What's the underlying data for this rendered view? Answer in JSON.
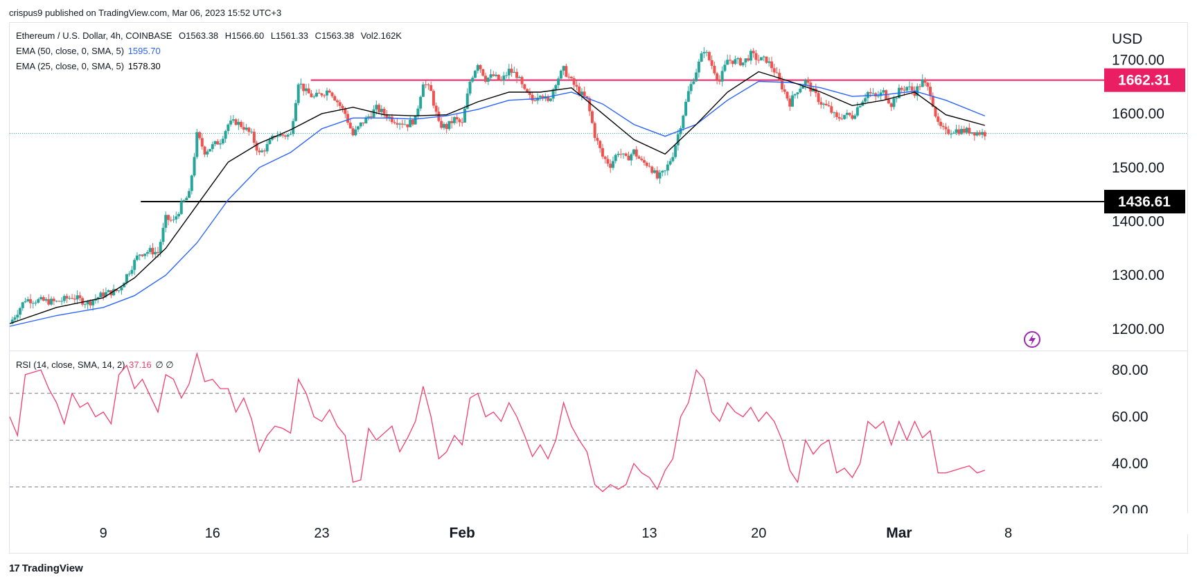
{
  "attribution": "crispus9 published on TradingView.com, Mar 06, 2023 15:52 UTC+3",
  "legend": {
    "symbol": "Ethereum / U.S. Dollar, 4h, COINBASE",
    "open_label": "O",
    "open": "1563.38",
    "high_label": "H",
    "high": "1566.60",
    "low_label": "L",
    "low": "1561.33",
    "close_label": "C",
    "close": "1563.38",
    "vol_label": "Vol",
    "vol": "2.162K",
    "ema50_label": "EMA (50, close, 0, SMA, 5)",
    "ema50_value": "1595.70",
    "ema25_label": "EMA (25, close, 0, SMA, 5)",
    "ema25_value": "1578.30",
    "rsi_label": "RSI (14, close, SMA, 14, 2)",
    "rsi_value": "37.16",
    "rsi_extra": "∅ ∅"
  },
  "footer": {
    "brand": "TradingView",
    "logo_icon": "tradingview-logo-icon"
  },
  "colors": {
    "up": "#26a69a",
    "down": "#ef5350",
    "ema50": "#2962ff",
    "ema25": "#000000",
    "resistance": "#e91e63",
    "support": "#000000",
    "rsi": "#f23d6d",
    "price_line": "#26a69a",
    "flash_icon": "#9c27b0"
  },
  "chart_data": [
    {
      "type": "candlestick",
      "title": "Ethereum / U.S. Dollar, 4h, COINBASE",
      "currency": "USD",
      "ylim": [
        1160,
        1770
      ],
      "y_ticks": [
        "1200.00",
        "1300.00",
        "1400.00",
        "1500.00",
        "1600.00",
        "1700.00"
      ],
      "x_ticks": [
        "9",
        "16",
        "23",
        "Feb",
        "13",
        "20",
        "Mar",
        "8"
      ],
      "x_tick_days": [
        9,
        16,
        23,
        32,
        44,
        51,
        60,
        67
      ],
      "x_range_days": [
        3.0,
        72.7
      ],
      "last_price": 1563.38,
      "horizontal_levels": [
        {
          "label": "1662.31",
          "value": 1662.31,
          "from_day": 22.3,
          "role": "resistance"
        },
        {
          "label": "1436.61",
          "value": 1436.61,
          "from_day": 11.4,
          "role": "support"
        }
      ],
      "close_path": [
        [
          3.0,
          1210
        ],
        [
          4.0,
          1255
        ],
        [
          6.0,
          1250
        ],
        [
          7.0,
          1260
        ],
        [
          8.0,
          1248
        ],
        [
          9.0,
          1265
        ],
        [
          10.0,
          1272
        ],
        [
          10.5,
          1300
        ],
        [
          11.3,
          1340
        ],
        [
          12.0,
          1345
        ],
        [
          12.5,
          1342
        ],
        [
          13.0,
          1405
        ],
        [
          13.5,
          1400
        ],
        [
          14.0,
          1430
        ],
        [
          14.5,
          1450
        ],
        [
          15.0,
          1560
        ],
        [
          15.5,
          1530
        ],
        [
          16.5,
          1550
        ],
        [
          17.0,
          1580
        ],
        [
          17.5,
          1585
        ],
        [
          18.0,
          1575
        ],
        [
          18.5,
          1560
        ],
        [
          19.0,
          1525
        ],
        [
          19.5,
          1540
        ],
        [
          20.0,
          1560
        ],
        [
          21.0,
          1560
        ],
        [
          21.5,
          1660
        ],
        [
          22.0,
          1640
        ],
        [
          22.5,
          1630
        ],
        [
          23.5,
          1645
        ],
        [
          24.5,
          1600
        ],
        [
          25.0,
          1560
        ],
        [
          25.5,
          1580
        ],
        [
          26.5,
          1610
        ],
        [
          27.5,
          1590
        ],
        [
          28.5,
          1580
        ],
        [
          29.0,
          1590
        ],
        [
          29.5,
          1660
        ],
        [
          30.0,
          1640
        ],
        [
          30.5,
          1580
        ],
        [
          31.0,
          1575
        ],
        [
          31.5,
          1590
        ],
        [
          32.0,
          1580
        ],
        [
          32.5,
          1660
        ],
        [
          33.0,
          1695
        ],
        [
          33.5,
          1665
        ],
        [
          34.0,
          1670
        ],
        [
          34.5,
          1660
        ],
        [
          35.0,
          1680
        ],
        [
          35.5,
          1672
        ],
        [
          36.0,
          1640
        ],
        [
          36.5,
          1625
        ],
        [
          37.0,
          1640
        ],
        [
          37.5,
          1620
        ],
        [
          38.0,
          1660
        ],
        [
          38.5,
          1682
        ],
        [
          39.0,
          1660
        ],
        [
          39.5,
          1640
        ],
        [
          40.0,
          1625
        ],
        [
          40.5,
          1560
        ],
        [
          41.0,
          1520
        ],
        [
          41.5,
          1505
        ],
        [
          42.0,
          1530
        ],
        [
          42.5,
          1515
        ],
        [
          43.0,
          1530
        ],
        [
          43.5,
          1510
        ],
        [
          44.0,
          1505
        ],
        [
          44.5,
          1480
        ],
        [
          45.0,
          1492
        ],
        [
          45.5,
          1525
        ],
        [
          46.0,
          1580
        ],
        [
          46.5,
          1640
        ],
        [
          47.0,
          1680
        ],
        [
          47.5,
          1720
        ],
        [
          48.0,
          1690
        ],
        [
          48.5,
          1660
        ],
        [
          49.0,
          1700
        ],
        [
          50.0,
          1695
        ],
        [
          50.5,
          1710
        ],
        [
          51.0,
          1700
        ],
        [
          51.5,
          1700
        ],
        [
          52.0,
          1680
        ],
        [
          52.5,
          1650
        ],
        [
          53.0,
          1620
        ],
        [
          53.5,
          1645
        ],
        [
          54.0,
          1660
        ],
        [
          54.5,
          1640
        ],
        [
          55.0,
          1620
        ],
        [
          55.5,
          1610
        ],
        [
          56.0,
          1590
        ],
        [
          56.5,
          1598
        ],
        [
          57.0,
          1595
        ],
        [
          57.5,
          1620
        ],
        [
          58.0,
          1640
        ],
        [
          58.5,
          1630
        ],
        [
          59.0,
          1640
        ],
        [
          59.5,
          1618
        ],
        [
          60.0,
          1642
        ],
        [
          60.5,
          1650
        ],
        [
          61.0,
          1640
        ],
        [
          61.5,
          1660
        ],
        [
          62.0,
          1640
        ],
        [
          62.5,
          1578
        ],
        [
          63.0,
          1565
        ],
        [
          63.5,
          1570
        ],
        [
          64.0,
          1568
        ],
        [
          64.5,
          1568
        ],
        [
          65.0,
          1565
        ],
        [
          65.5,
          1563.38
        ]
      ],
      "ema25_path": [
        [
          3.0,
          1210
        ],
        [
          6.0,
          1240
        ],
        [
          9.0,
          1258
        ],
        [
          11.0,
          1295
        ],
        [
          13.0,
          1350
        ],
        [
          15.0,
          1430
        ],
        [
          17.0,
          1510
        ],
        [
          19.0,
          1545
        ],
        [
          21.0,
          1570
        ],
        [
          23.0,
          1600
        ],
        [
          25.0,
          1612
        ],
        [
          27.0,
          1598
        ],
        [
          29.0,
          1596
        ],
        [
          31.0,
          1598
        ],
        [
          33.0,
          1622
        ],
        [
          35.0,
          1640
        ],
        [
          37.0,
          1640
        ],
        [
          39.0,
          1648
        ],
        [
          41.0,
          1600
        ],
        [
          43.0,
          1552
        ],
        [
          45.0,
          1525
        ],
        [
          47.0,
          1580
        ],
        [
          49.0,
          1640
        ],
        [
          51.0,
          1678
        ],
        [
          53.0,
          1660
        ],
        [
          55.0,
          1640
        ],
        [
          57.0,
          1615
        ],
        [
          59.0,
          1625
        ],
        [
          61.0,
          1640
        ],
        [
          63.0,
          1598
        ],
        [
          65.5,
          1578.3
        ]
      ],
      "ema50_path": [
        [
          3.0,
          1205
        ],
        [
          6.0,
          1225
        ],
        [
          9.0,
          1240
        ],
        [
          11.0,
          1262
        ],
        [
          13.0,
          1300
        ],
        [
          15.0,
          1360
        ],
        [
          17.0,
          1440
        ],
        [
          19.0,
          1500
        ],
        [
          21.0,
          1528
        ],
        [
          23.0,
          1572
        ],
        [
          25.0,
          1592
        ],
        [
          27.0,
          1592
        ],
        [
          29.0,
          1590
        ],
        [
          31.0,
          1596
        ],
        [
          33.0,
          1608
        ],
        [
          35.0,
          1625
        ],
        [
          37.0,
          1628
        ],
        [
          39.0,
          1640
        ],
        [
          41.0,
          1618
        ],
        [
          43.0,
          1580
        ],
        [
          45.0,
          1558
        ],
        [
          47.0,
          1580
        ],
        [
          49.0,
          1625
        ],
        [
          51.0,
          1660
        ],
        [
          53.0,
          1658
        ],
        [
          55.0,
          1648
        ],
        [
          57.0,
          1632
        ],
        [
          59.0,
          1635
        ],
        [
          61.0,
          1642
        ],
        [
          63.0,
          1625
        ],
        [
          65.5,
          1595.7
        ]
      ]
    },
    {
      "type": "line",
      "title": "RSI (14, close, SMA, 14, 2)",
      "ylim": [
        19,
        88
      ],
      "y_ticks": [
        "20.00",
        "40.00",
        "60.00",
        "80.00"
      ],
      "bands": [
        70,
        50,
        30
      ],
      "rsi_path": [
        [
          3.0,
          60
        ],
        [
          3.5,
          52
        ],
        [
          4.0,
          78
        ],
        [
          5.0,
          80
        ],
        [
          5.5,
          72
        ],
        [
          6.0,
          66
        ],
        [
          6.5,
          57
        ],
        [
          7.0,
          70
        ],
        [
          7.5,
          64
        ],
        [
          8.0,
          66
        ],
        [
          8.5,
          60
        ],
        [
          9.0,
          62
        ],
        [
          9.5,
          57
        ],
        [
          10.0,
          78
        ],
        [
          10.5,
          82
        ],
        [
          11.0,
          72
        ],
        [
          11.5,
          76
        ],
        [
          12.0,
          69
        ],
        [
          12.5,
          62
        ],
        [
          13.0,
          78
        ],
        [
          13.5,
          76
        ],
        [
          14.0,
          68
        ],
        [
          14.5,
          74
        ],
        [
          15.0,
          87
        ],
        [
          15.5,
          75
        ],
        [
          16.0,
          76
        ],
        [
          16.5,
          72
        ],
        [
          17.0,
          72
        ],
        [
          17.5,
          62
        ],
        [
          18.0,
          68
        ],
        [
          18.5,
          59
        ],
        [
          19.0,
          45
        ],
        [
          19.5,
          52
        ],
        [
          20.0,
          56
        ],
        [
          20.5,
          55
        ],
        [
          21.0,
          53
        ],
        [
          21.5,
          76
        ],
        [
          22.0,
          70
        ],
        [
          22.5,
          60
        ],
        [
          23.0,
          58
        ],
        [
          23.5,
          63
        ],
        [
          24.0,
          56
        ],
        [
          24.5,
          52
        ],
        [
          25.0,
          32
        ],
        [
          25.5,
          33
        ],
        [
          26.0,
          55
        ],
        [
          26.5,
          50
        ],
        [
          27.0,
          53
        ],
        [
          27.5,
          56
        ],
        [
          28.0,
          45
        ],
        [
          28.5,
          51
        ],
        [
          29.0,
          58
        ],
        [
          29.5,
          73
        ],
        [
          30.0,
          60
        ],
        [
          30.5,
          42
        ],
        [
          31.0,
          45
        ],
        [
          31.5,
          52
        ],
        [
          32.0,
          48
        ],
        [
          32.5,
          68
        ],
        [
          33.0,
          70
        ],
        [
          33.5,
          60
        ],
        [
          34.0,
          62
        ],
        [
          34.5,
          58
        ],
        [
          35.0,
          66
        ],
        [
          35.5,
          60
        ],
        [
          36.0,
          52
        ],
        [
          36.5,
          43
        ],
        [
          37.0,
          48
        ],
        [
          37.5,
          42
        ],
        [
          38.0,
          50
        ],
        [
          38.5,
          66
        ],
        [
          39.0,
          56
        ],
        [
          39.5,
          50
        ],
        [
          40.0,
          45
        ],
        [
          40.5,
          31
        ],
        [
          41.0,
          28
        ],
        [
          41.5,
          31
        ],
        [
          42.0,
          29
        ],
        [
          42.5,
          31
        ],
        [
          43.0,
          40
        ],
        [
          43.5,
          36
        ],
        [
          44.0,
          34
        ],
        [
          44.5,
          29
        ],
        [
          45.0,
          37
        ],
        [
          45.5,
          42
        ],
        [
          46.0,
          60
        ],
        [
          46.5,
          66
        ],
        [
          47.0,
          80
        ],
        [
          47.5,
          76
        ],
        [
          48.0,
          62
        ],
        [
          48.5,
          58
        ],
        [
          49.0,
          66
        ],
        [
          49.5,
          62
        ],
        [
          50.0,
          60
        ],
        [
          50.5,
          64
        ],
        [
          51.0,
          58
        ],
        [
          51.5,
          62
        ],
        [
          52.0,
          58
        ],
        [
          52.5,
          50
        ],
        [
          53.0,
          37
        ],
        [
          53.5,
          32
        ],
        [
          54.0,
          50
        ],
        [
          54.5,
          44
        ],
        [
          55.0,
          48
        ],
        [
          55.5,
          50
        ],
        [
          56.0,
          36
        ],
        [
          56.5,
          38
        ],
        [
          57.0,
          34
        ],
        [
          57.5,
          40
        ],
        [
          58.0,
          58
        ],
        [
          58.5,
          55
        ],
        [
          59.0,
          58
        ],
        [
          59.5,
          48
        ],
        [
          60.0,
          58
        ],
        [
          60.5,
          50
        ],
        [
          61.0,
          58
        ],
        [
          61.5,
          51
        ],
        [
          62.0,
          54
        ],
        [
          62.5,
          36
        ],
        [
          63.0,
          36
        ],
        [
          63.5,
          37
        ],
        [
          64.0,
          38
        ],
        [
          64.5,
          39
        ],
        [
          65.0,
          36
        ],
        [
          65.5,
          37.16
        ]
      ]
    }
  ]
}
